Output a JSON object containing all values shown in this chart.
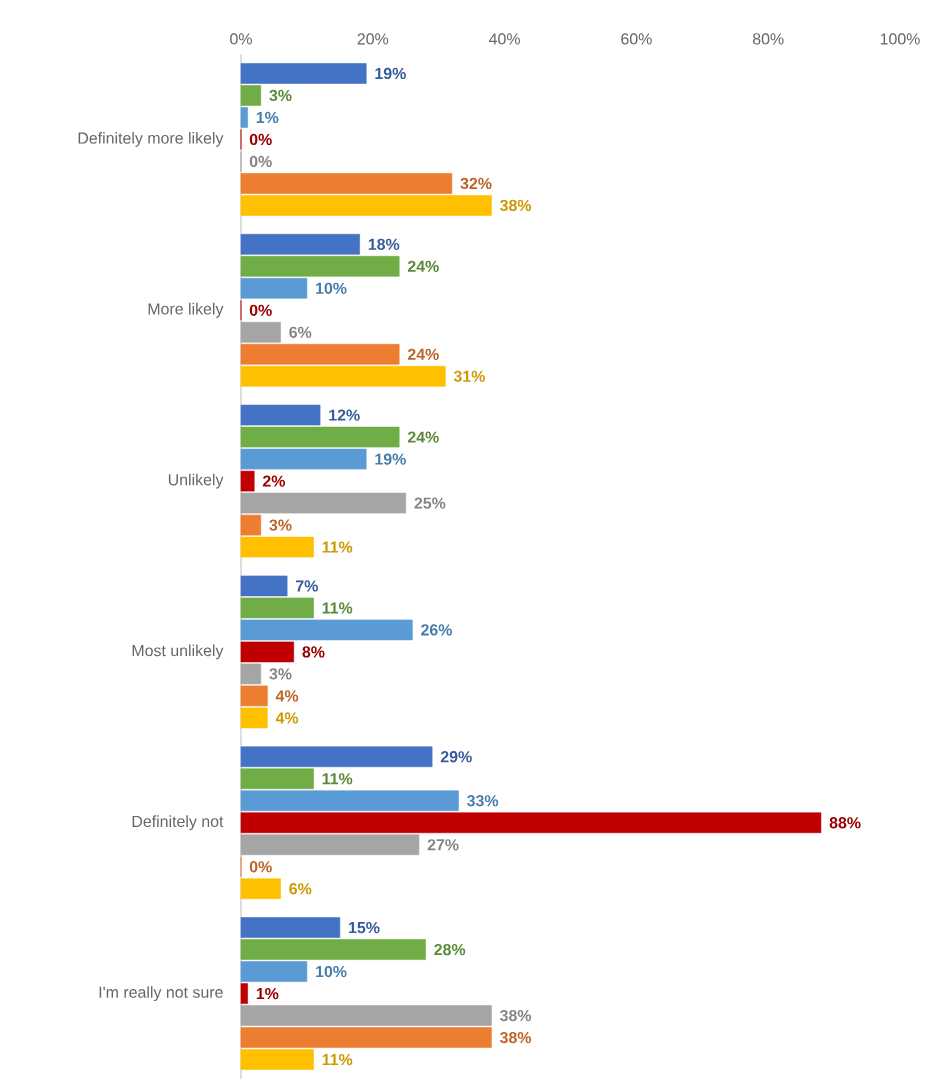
{
  "chart_data": {
    "type": "bar",
    "orientation": "horizontal",
    "categories": [
      "Definitely more likely",
      "More likely",
      "Unlikely",
      "Most unlikely",
      "Definitely not",
      "I'm really not sure"
    ],
    "xlim": [
      0,
      100
    ],
    "xticks": [
      {
        "value": 0,
        "label": "0%"
      },
      {
        "value": 20,
        "label": "20%"
      },
      {
        "value": 40,
        "label": "40%"
      },
      {
        "value": 60,
        "label": "60%"
      },
      {
        "value": 80,
        "label": "80%"
      },
      {
        "value": 100,
        "label": "100%"
      }
    ],
    "series": [
      {
        "color": "#4472c4",
        "values": [
          19,
          18,
          12,
          7,
          29,
          15
        ],
        "value_labels": [
          "19%",
          "18%",
          "12%",
          "7%",
          "29%",
          "15%"
        ]
      },
      {
        "color": "#70ad47",
        "values": [
          3,
          24,
          24,
          11,
          11,
          28
        ],
        "value_labels": [
          "3%",
          "24%",
          "24%",
          "11%",
          "11%",
          "28%"
        ]
      },
      {
        "color": "#5b9bd5",
        "values": [
          1,
          10,
          19,
          26,
          33,
          10
        ],
        "value_labels": [
          "1%",
          "10%",
          "19%",
          "26%",
          "33%",
          "10%"
        ]
      },
      {
        "color": "#c00000",
        "values": [
          0,
          0,
          2,
          8,
          88,
          1
        ],
        "value_labels": [
          "0%",
          "0%",
          "2%",
          "8%",
          "88%",
          "1%"
        ]
      },
      {
        "color": "#a5a5a5",
        "values": [
          0,
          6,
          25,
          3,
          27,
          38
        ],
        "value_labels": [
          "0%",
          "6%",
          "25%",
          "3%",
          "27%",
          "38%"
        ]
      },
      {
        "color": "#ed7d31",
        "values": [
          32,
          24,
          3,
          4,
          0,
          38
        ],
        "value_labels": [
          "32%",
          "24%",
          "3%",
          "4%",
          "0%",
          "38%"
        ]
      },
      {
        "color": "#ffc000",
        "values": [
          38,
          31,
          11,
          4,
          6,
          11
        ],
        "value_labels": [
          "38%",
          "31%",
          "11%",
          "4%",
          "6%",
          "11%"
        ]
      }
    ]
  }
}
